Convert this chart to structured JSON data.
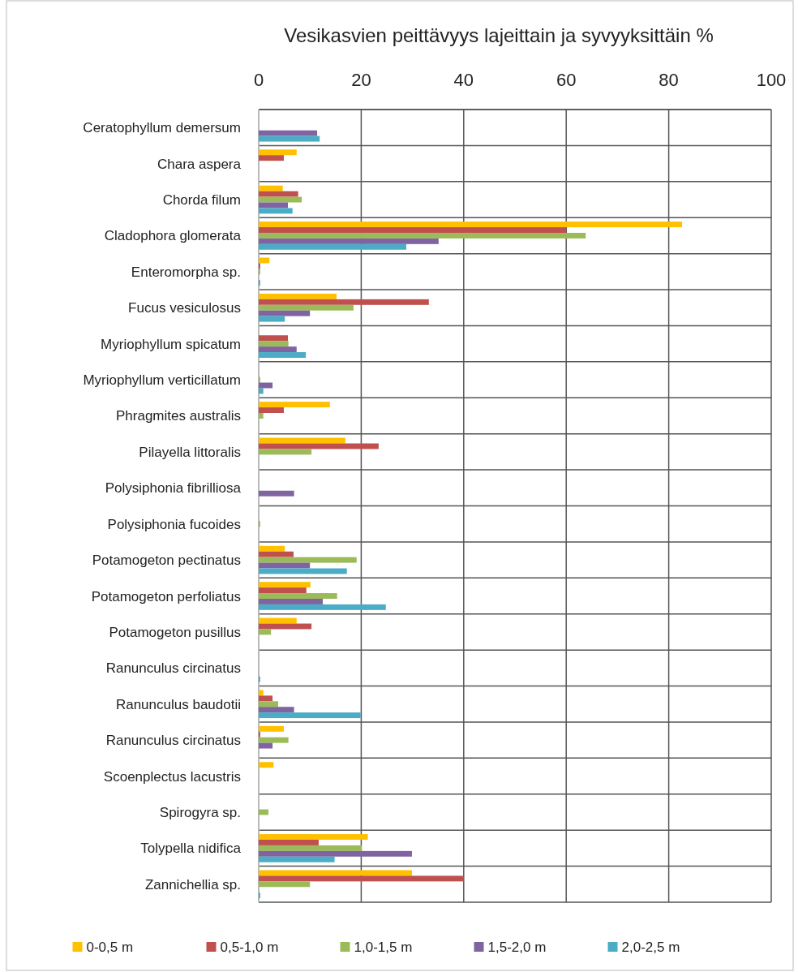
{
  "chart_data": {
    "type": "bar",
    "orientation": "horizontal",
    "title": "Vesikasvien peittävyys lajeittain ja syvyyksittäin %",
    "categories": [
      "Ceratophyllum demersum",
      "Chara aspera",
      "Chorda filum",
      "Cladophora glomerata",
      "Enteromorpha sp.",
      "Fucus vesiculosus",
      "Myriophyllum spicatum",
      "Myriophyllum verticillatum",
      "Phragmites australis",
      "Pilayella littoralis",
      "Polysiphonia fibrilliosa",
      "Polysiphonia fucoides",
      "Potamogeton pectinatus",
      "Potamogeton perfoliatus",
      "Potamogeton pusillus",
      "Ranunculus  circinatus",
      "Ranunculus baudotii",
      "Ranunculus circinatus",
      "Scoenplectus lacustris",
      "Spirogyra sp.",
      "Tolypella nidifica",
      "Zannichellia sp."
    ],
    "series": [
      {
        "name": "0-0,5 m",
        "color": "#ffc000",
        "values": [
          null,
          7.4,
          4.7,
          82.6,
          2.1,
          15.2,
          null,
          null,
          13.9,
          16.9,
          null,
          null,
          5.1,
          10.1,
          7.4,
          null,
          0.9,
          4.9,
          2.9,
          null,
          21.3,
          29.9
        ]
      },
      {
        "name": "0,5-1,0 m",
        "color": "#c0504d",
        "values": [
          null,
          4.9,
          7.7,
          60,
          0.3,
          33.2,
          5.7,
          null,
          4.9,
          23.4,
          null,
          null,
          6.8,
          9.3,
          10.3,
          null,
          2.7,
          0.3,
          null,
          null,
          11.7,
          40
        ]
      },
      {
        "name": "1,0-1,5 m",
        "color": "#9bbb59",
        "values": [
          null,
          null,
          8.4,
          63.8,
          0.3,
          18.5,
          5.8,
          0.3,
          0.9,
          10.3,
          null,
          0.3,
          19.1,
          15.3,
          2.4,
          null,
          3.8,
          5.8,
          null,
          1.9,
          20.1,
          10
        ]
      },
      {
        "name": "1,5-2,0 m",
        "color": "#8064a2",
        "values": [
          11.4,
          null,
          5.7,
          35.1,
          null,
          10,
          7.4,
          2.7,
          null,
          null,
          6.9,
          null,
          10,
          12.5,
          null,
          null,
          6.9,
          2.7,
          null,
          null,
          29.9,
          null
        ]
      },
      {
        "name": "2,0-2,5 m",
        "color": "#4bacc6",
        "values": [
          11.9,
          null,
          6.6,
          28.8,
          0.3,
          5.1,
          9.2,
          0.9,
          null,
          null,
          null,
          null,
          17.2,
          24.8,
          null,
          0.3,
          19.9,
          null,
          null,
          null,
          14.8,
          0.3
        ]
      }
    ],
    "xlim": [
      0,
      100
    ],
    "xticks": [
      0,
      20,
      40,
      60,
      80,
      100
    ],
    "grid": true,
    "legend": "bottom"
  }
}
